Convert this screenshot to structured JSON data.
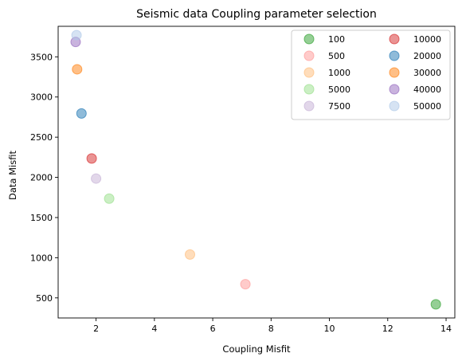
{
  "chart_data": {
    "type": "scatter",
    "title": "Seismic data Coupling parameter selection",
    "xlabel": "Coupling Misfit",
    "ylabel": "Data Misfit",
    "xlim": [
      0.7,
      14.3
    ],
    "ylim": [
      250,
      3880
    ],
    "xticks": [
      2,
      4,
      6,
      8,
      10,
      12,
      14
    ],
    "yticks": [
      500,
      1000,
      1500,
      2000,
      2500,
      3000,
      3500
    ],
    "grid": false,
    "legend_position": "top-right",
    "legend_columns": 2,
    "series": [
      {
        "name": "100",
        "color": "#2ca02c",
        "alpha": 0.5,
        "x": 13.65,
        "y": 420
      },
      {
        "name": "500",
        "color": "#ff9896",
        "alpha": 0.5,
        "x": 7.12,
        "y": 670
      },
      {
        "name": "1000",
        "color": "#ffbb78",
        "alpha": 0.5,
        "x": 5.22,
        "y": 1040
      },
      {
        "name": "5000",
        "color": "#98df8a",
        "alpha": 0.5,
        "x": 2.45,
        "y": 1735
      },
      {
        "name": "7500",
        "color": "#c5b0d5",
        "alpha": 0.5,
        "x": 2.0,
        "y": 1985
      },
      {
        "name": "10000",
        "color": "#d62728",
        "alpha": 0.5,
        "x": 1.85,
        "y": 2235
      },
      {
        "name": "20000",
        "color": "#1f77b4",
        "alpha": 0.5,
        "x": 1.5,
        "y": 2795
      },
      {
        "name": "30000",
        "color": "#ff7f0e",
        "alpha": 0.5,
        "x": 1.35,
        "y": 3345
      },
      {
        "name": "40000",
        "color": "#9467bd",
        "alpha": 0.5,
        "x": 1.3,
        "y": 3685
      },
      {
        "name": "50000",
        "color": "#aec7e8",
        "alpha": 0.5,
        "x": 1.33,
        "y": 3770
      }
    ]
  }
}
